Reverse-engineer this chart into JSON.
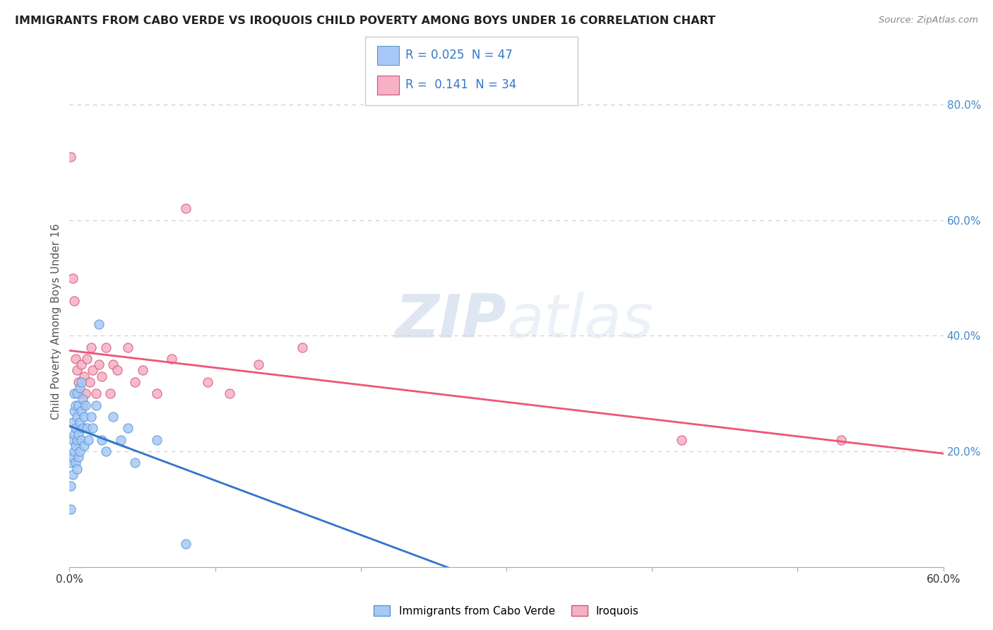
{
  "title": "IMMIGRANTS FROM CABO VERDE VS IROQUOIS CHILD POVERTY AMONG BOYS UNDER 16 CORRELATION CHART",
  "source": "Source: ZipAtlas.com",
  "ylabel": "Child Poverty Among Boys Under 16",
  "xlim": [
    0.0,
    0.6
  ],
  "ylim": [
    0.0,
    0.85
  ],
  "cabo_color": "#a8c8f8",
  "cabo_edge": "#5599cc",
  "iroquois_color": "#f8b0c4",
  "iroquois_edge": "#cc5577",
  "trend_cabo_color": "#3377cc",
  "trend_iroquois_color": "#ee5577",
  "watermark_zip": "ZIP",
  "watermark_atlas": "atlas",
  "cabo_x": [
    0.001,
    0.001,
    0.001,
    0.002,
    0.002,
    0.002,
    0.002,
    0.003,
    0.003,
    0.003,
    0.003,
    0.004,
    0.004,
    0.004,
    0.004,
    0.005,
    0.005,
    0.005,
    0.005,
    0.006,
    0.006,
    0.006,
    0.007,
    0.007,
    0.007,
    0.008,
    0.008,
    0.008,
    0.009,
    0.009,
    0.01,
    0.01,
    0.011,
    0.012,
    0.013,
    0.015,
    0.016,
    0.018,
    0.02,
    0.022,
    0.025,
    0.03,
    0.035,
    0.04,
    0.045,
    0.06,
    0.08
  ],
  "cabo_y": [
    0.1,
    0.14,
    0.18,
    0.16,
    0.19,
    0.22,
    0.25,
    0.2,
    0.23,
    0.27,
    0.3,
    0.18,
    0.21,
    0.24,
    0.28,
    0.17,
    0.22,
    0.26,
    0.3,
    0.19,
    0.23,
    0.28,
    0.2,
    0.25,
    0.31,
    0.22,
    0.27,
    0.32,
    0.24,
    0.29,
    0.21,
    0.26,
    0.28,
    0.24,
    0.22,
    0.26,
    0.24,
    0.28,
    0.42,
    0.22,
    0.2,
    0.26,
    0.22,
    0.24,
    0.18,
    0.22,
    0.04
  ],
  "iroquois_x": [
    0.001,
    0.002,
    0.003,
    0.004,
    0.005,
    0.006,
    0.007,
    0.008,
    0.009,
    0.01,
    0.011,
    0.012,
    0.014,
    0.015,
    0.016,
    0.018,
    0.02,
    0.022,
    0.025,
    0.028,
    0.03,
    0.033,
    0.04,
    0.045,
    0.05,
    0.06,
    0.07,
    0.08,
    0.095,
    0.11,
    0.13,
    0.16,
    0.42,
    0.53
  ],
  "iroquois_y": [
    0.71,
    0.5,
    0.46,
    0.36,
    0.34,
    0.32,
    0.3,
    0.35,
    0.28,
    0.33,
    0.3,
    0.36,
    0.32,
    0.38,
    0.34,
    0.3,
    0.35,
    0.33,
    0.38,
    0.3,
    0.35,
    0.34,
    0.38,
    0.32,
    0.34,
    0.3,
    0.36,
    0.62,
    0.32,
    0.3,
    0.35,
    0.38,
    0.22,
    0.22
  ]
}
